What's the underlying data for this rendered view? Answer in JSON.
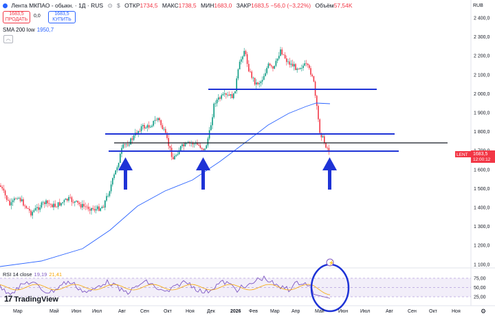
{
  "header": {
    "symbol": "Лента МКПАО - обыкн. · 1Д · RUS",
    "open_label": "ОТКР",
    "open_value": "1734,5",
    "high_label": "МАКС",
    "high_value": "1738,5",
    "low_label": "МИН",
    "low_value": "1683,0",
    "close_label": "ЗАКР",
    "close_value": "1683,5",
    "change": "−56,0 (−3,22%)",
    "volume_label": "Объём",
    "volume_value": "57,54K"
  },
  "trade": {
    "sell_price": "1683,5",
    "sell_label": "ПРОДАТЬ",
    "spread": "0,0",
    "buy_price": "1683,5",
    "buy_label": "КУПИТЬ"
  },
  "indicators": {
    "sma_label": "SMA 200 low",
    "sma_value": "1950,7",
    "rsi_label": "RSI 14 close",
    "rsi_value": "19,19",
    "rsi_ma_value": "21,41"
  },
  "price_axis": {
    "currency": "RUB",
    "ticks": [
      "2 400,0",
      "2 300,0",
      "2 200,0",
      "2 100,0",
      "2 000,0",
      "1 900,0",
      "1 800,0",
      "1 700,0",
      "1 600,0",
      "1 500,0",
      "1 400,0",
      "1 300,0",
      "1 200,0",
      "1 100,0"
    ],
    "ticker_label": "LENT",
    "last_price": "1683,5",
    "countdown": "12:00:12"
  },
  "rsi_axis": {
    "ticks": [
      "75,00",
      "50,00",
      "25,00"
    ]
  },
  "time_axis": {
    "labels": [
      "Мар",
      "Май",
      "Июн",
      "Июл",
      "Авг",
      "Сен",
      "Окт",
      "Ноя",
      "Дек",
      "2026",
      "Фев",
      "Мар",
      "Апр",
      "Май",
      "Июн",
      "Июл",
      "Авг",
      "Сен",
      "Окт",
      "Ноя"
    ]
  },
  "branding": {
    "logo_text": "TradingView"
  },
  "colors": {
    "up": "#089981",
    "down": "#f23645",
    "sma": "#2962ff",
    "annot": "#1e33d6",
    "rsi": "#7e57c2",
    "rsi_ma": "#f7a600"
  }
}
